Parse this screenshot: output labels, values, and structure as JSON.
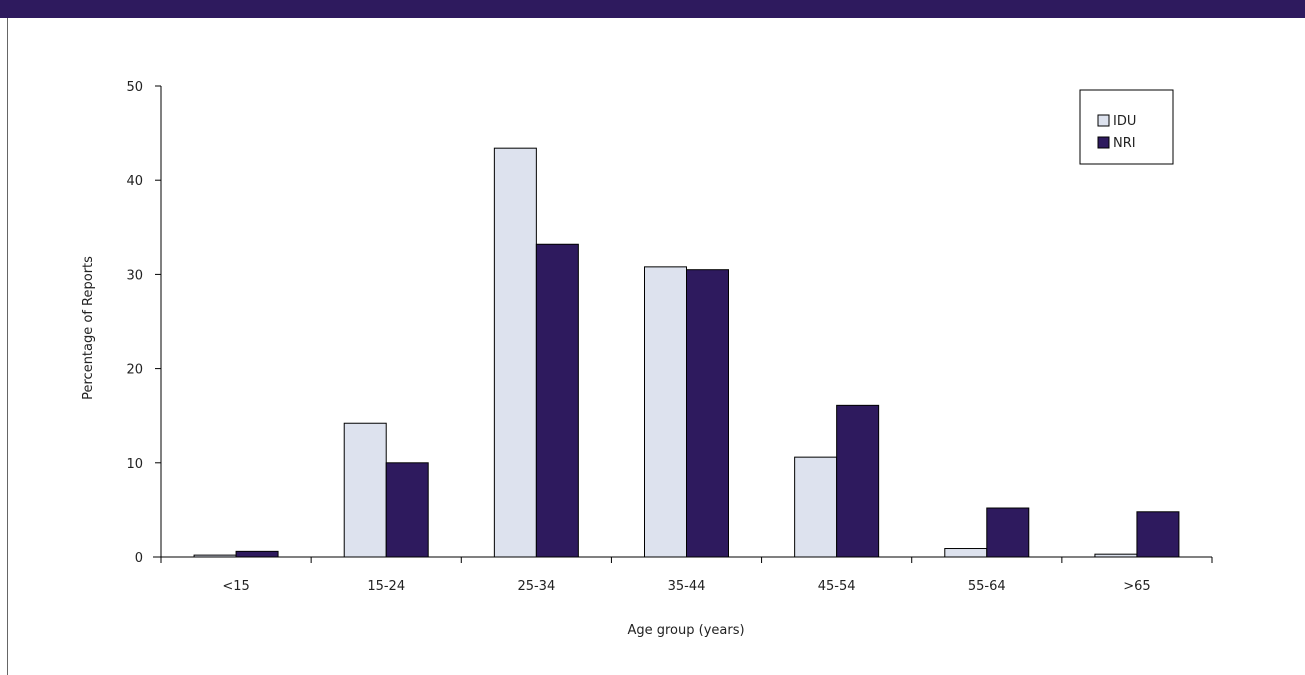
{
  "chart_data": {
    "type": "bar",
    "title": "",
    "xlabel": "Age group (years)",
    "ylabel": "Percentage of Reports",
    "categories": [
      "<15",
      "15-24",
      "25-34",
      "35-44",
      "45-54",
      "55-64",
      ">65"
    ],
    "series": [
      {
        "name": "IDU",
        "color": "#dde2ee",
        "values": [
          0.2,
          14.2,
          43.4,
          30.8,
          10.6,
          0.9,
          0.3
        ]
      },
      {
        "name": "NRI",
        "color": "#2e1a5e",
        "values": [
          0.6,
          10.0,
          33.2,
          30.5,
          16.1,
          5.2,
          4.8
        ]
      }
    ],
    "ylim": [
      0,
      50
    ],
    "yticks": [
      0,
      10,
      20,
      30,
      40,
      50
    ],
    "grid": false,
    "legend_position": "top-right"
  },
  "colors": {
    "banner": "#2e1a5e",
    "bar_outline": "#000000"
  }
}
